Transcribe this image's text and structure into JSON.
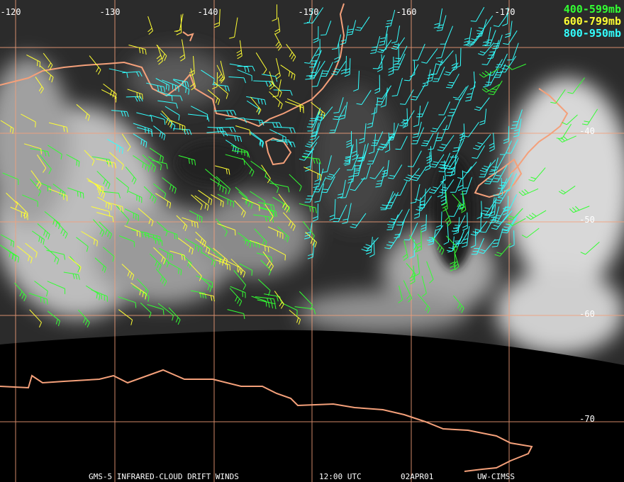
{
  "map": {
    "longitude_labels": [
      "-120",
      "-130",
      "-140",
      "-150",
      "-160",
      "-170"
    ],
    "latitude_labels": [
      "-40",
      "-50",
      "-60",
      "-70"
    ],
    "legend": [
      "400-599mb",
      "600-799mb",
      "800-950mb"
    ],
    "footer": [
      "GMS-5 INFRARED-CLOUD DRIFT WINDS",
      "12:00 UTC",
      "02APR01",
      "UW-CIMSS"
    ]
  }
}
